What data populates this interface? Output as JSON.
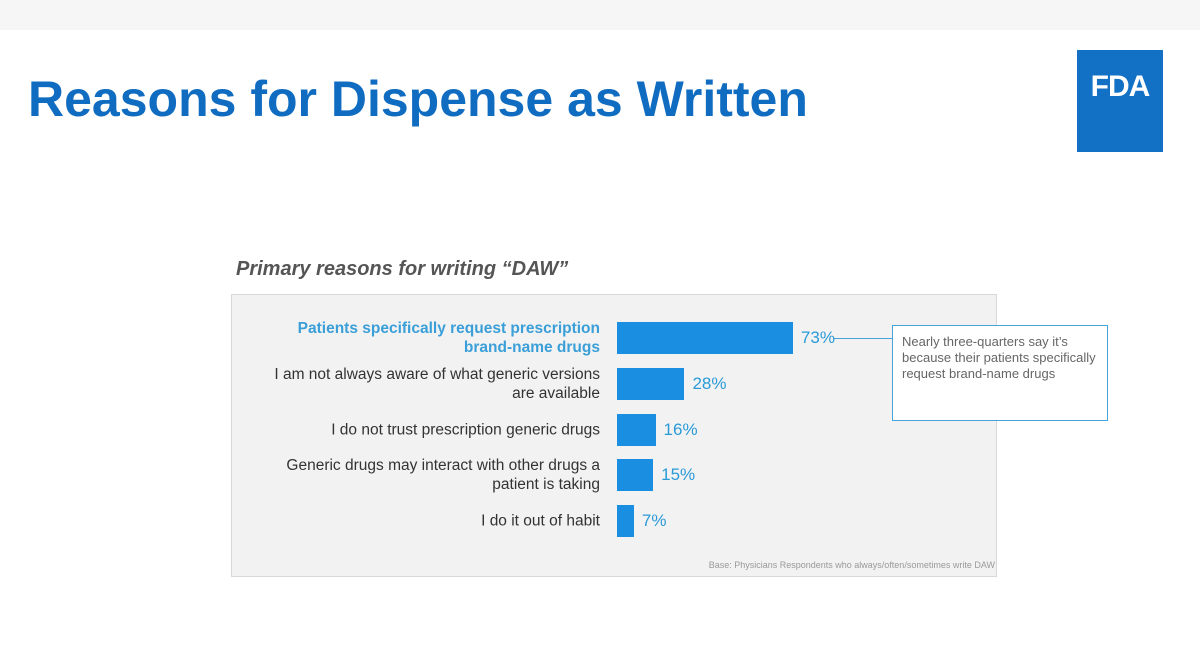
{
  "chart_data": {
    "type": "hbar",
    "title": "Reasons for Dispense as Written",
    "logo": "FDA",
    "subtitle": "Primary reasons for writing “DAW”",
    "categories": [
      "Patients specifically request prescription brand-name drugs",
      "I am not always aware of what generic versions are available",
      "I do not trust prescription generic drugs",
      "Generic drugs may interact with other drugs a patient is taking",
      "I do it out of habit"
    ],
    "values": [
      73,
      28,
      16,
      15,
      7
    ],
    "value_labels": [
      "73%",
      "28%",
      "16%",
      "15%",
      "7%"
    ],
    "color": "#1a8ee0",
    "annotation": "Nearly three-quarters say it’s because their patients specifically request brand-name drugs",
    "footnote": "Base: Physicians Respondents who always/often/sometimes write DAW"
  }
}
